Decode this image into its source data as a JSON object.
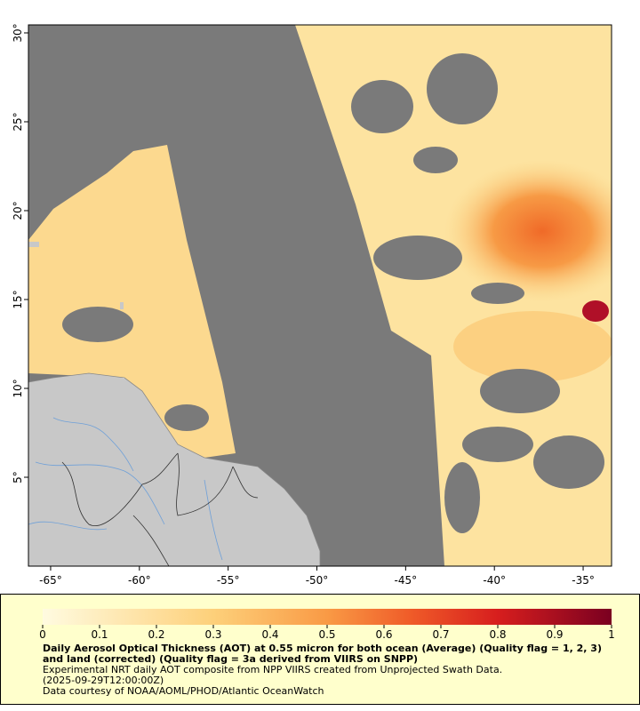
{
  "map": {
    "xlim": [
      -66.25,
      -33.4
    ],
    "ylim": [
      0,
      30.45
    ],
    "xticks": [
      {
        "value": -65,
        "label": "-65°"
      },
      {
        "value": -60,
        "label": "-60°"
      },
      {
        "value": -55,
        "label": "-55°"
      },
      {
        "value": -50,
        "label": "-50°"
      },
      {
        "value": -45,
        "label": "-45°"
      },
      {
        "value": -40,
        "label": "-40°"
      },
      {
        "value": -35,
        "label": "-35°"
      }
    ],
    "yticks": [
      {
        "value": 5,
        "label": "5°"
      },
      {
        "value": 10,
        "label": "10°"
      },
      {
        "value": 15,
        "label": "15°"
      },
      {
        "value": 20,
        "label": "20°"
      },
      {
        "value": 25,
        "label": "25°"
      },
      {
        "value": 30,
        "label": "30°"
      }
    ]
  },
  "colorbar": {
    "range": [
      0,
      1
    ],
    "ticks": [
      0,
      0.1,
      0.2,
      0.3,
      0.4,
      0.5,
      0.6,
      0.7,
      0.8,
      0.9,
      1
    ]
  },
  "caption": {
    "title": "Daily Aerosol Optical Thickness (AOT) at 0.55 micron for both ocean (Average) (Quality flag = 1, 2, 3) and land (corrected) (Quality flag = 3a derived from VIIRS on SNPP)",
    "lines": [
      "Experimental NRT daily AOT composite from NPP VIIRS created from Unprojected Swath Data.",
      "(2025-09-29T12:00:00Z)",
      "Data courtesy of NOAA/AOML/PHOD/Atlantic OceanWatch"
    ]
  }
}
